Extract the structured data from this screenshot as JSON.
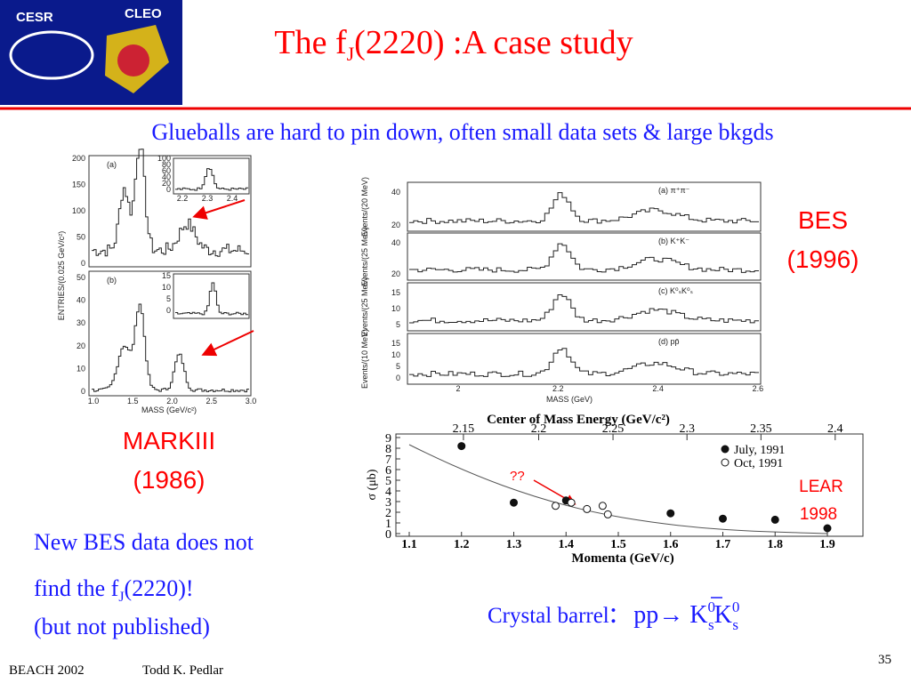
{
  "header": {
    "logo_left": "CESR",
    "logo_right": "CLEO",
    "title_main": "The f",
    "title_sub": "J",
    "title_rest": "(2220) :A case study"
  },
  "subtitle": "Glueballs are hard to pin down, often small data sets & large bkgds",
  "markiii": {
    "label": "MARKIII",
    "year": "(1986)",
    "y_label": "ENTRIES/(0.025 GeV/c²)",
    "x_label": "MASS (GeV/c²)",
    "panel_a": "(a)",
    "panel_b": "(b)",
    "top_yticks": [
      "200",
      "150",
      "100",
      "50",
      "0"
    ],
    "bottom_yticks": [
      "50",
      "40",
      "30",
      "20",
      "10",
      "0"
    ],
    "xticks": [
      "1.0",
      "1.5",
      "2.0",
      "2.5",
      "3.0"
    ],
    "inset_top_yticks": [
      "100",
      "80",
      "60",
      "40",
      "20",
      "0"
    ],
    "inset_bottom_yticks": [
      "15",
      "10",
      "5",
      "0"
    ],
    "inset_xticks": [
      "2.2",
      "2.3",
      "2.4"
    ]
  },
  "bes": {
    "label": "BES",
    "year": "(1996)",
    "x_label": "MASS    (GeV)",
    "xticks": [
      "2",
      "2.2",
      "2.4",
      "2.6"
    ],
    "panels": [
      {
        "label": "(a)   π⁺π⁻",
        "y_label": "Events/(20 MeV)",
        "yticks": [
          "40",
          "20"
        ]
      },
      {
        "label": "(b)   K⁺K⁻",
        "y_label": "Events/(25 MeV)",
        "yticks": [
          "40",
          "20"
        ]
      },
      {
        "label": "(c)   K⁰ₛK⁰ₛ",
        "y_label": "Events/(25 MeV)",
        "yticks": [
          "15",
          "10",
          "5"
        ]
      },
      {
        "label": "(d)   pp̄",
        "y_label": "Events/(10 MeV)",
        "yticks": [
          "15",
          "10",
          "5",
          "0"
        ]
      }
    ]
  },
  "crystal": {
    "top_axis_label": "Center of Mass Energy (GeV/c²)",
    "top_ticks": [
      2.15,
      2.2,
      2.25,
      2.3,
      2.35,
      2.4
    ],
    "x_label": "Momenta (GeV/c)",
    "xticks": [
      1.1,
      1.2,
      1.3,
      1.4,
      1.5,
      1.6,
      1.7,
      1.8,
      1.9
    ],
    "xlim": [
      1.1,
      1.9
    ],
    "y_label": "σ (μb)",
    "yticks": [
      0,
      1,
      2,
      3,
      4,
      5,
      6,
      7,
      8,
      9
    ],
    "ylim": [
      0,
      9
    ],
    "series": [
      {
        "name": "July, 1991",
        "x": [
          1.2,
          1.3,
          1.4,
          1.6,
          1.7,
          1.8,
          1.9
        ],
        "values": [
          8.2,
          2.9,
          3.1,
          1.9,
          1.4,
          1.3,
          0.5
        ]
      },
      {
        "name": "Oct, 1991",
        "x": [
          1.38,
          1.41,
          1.44,
          1.47,
          1.48
        ],
        "values": [
          2.6,
          2.9,
          2.3,
          2.6,
          1.8
        ]
      }
    ],
    "annotation": "??",
    "lear": "LEAR",
    "lear_year": "1998"
  },
  "conclusion": {
    "line1": "New BES data does not",
    "line2_main": "find the f",
    "line2_sub": "J",
    "line2_rest": "(2220)!",
    "line3": "(but not published)"
  },
  "reaction": {
    "prefix": "Crystal barrel",
    "colon": ":",
    "beam": "pp",
    "arrow": "→ K",
    "sup1": "0",
    "sub1": "s",
    "k2": "K",
    "sup2": "0",
    "sub2": "s"
  },
  "footer": {
    "conference": "BEACH 2002",
    "author": "Todd K. Pedlar",
    "page": "35"
  }
}
